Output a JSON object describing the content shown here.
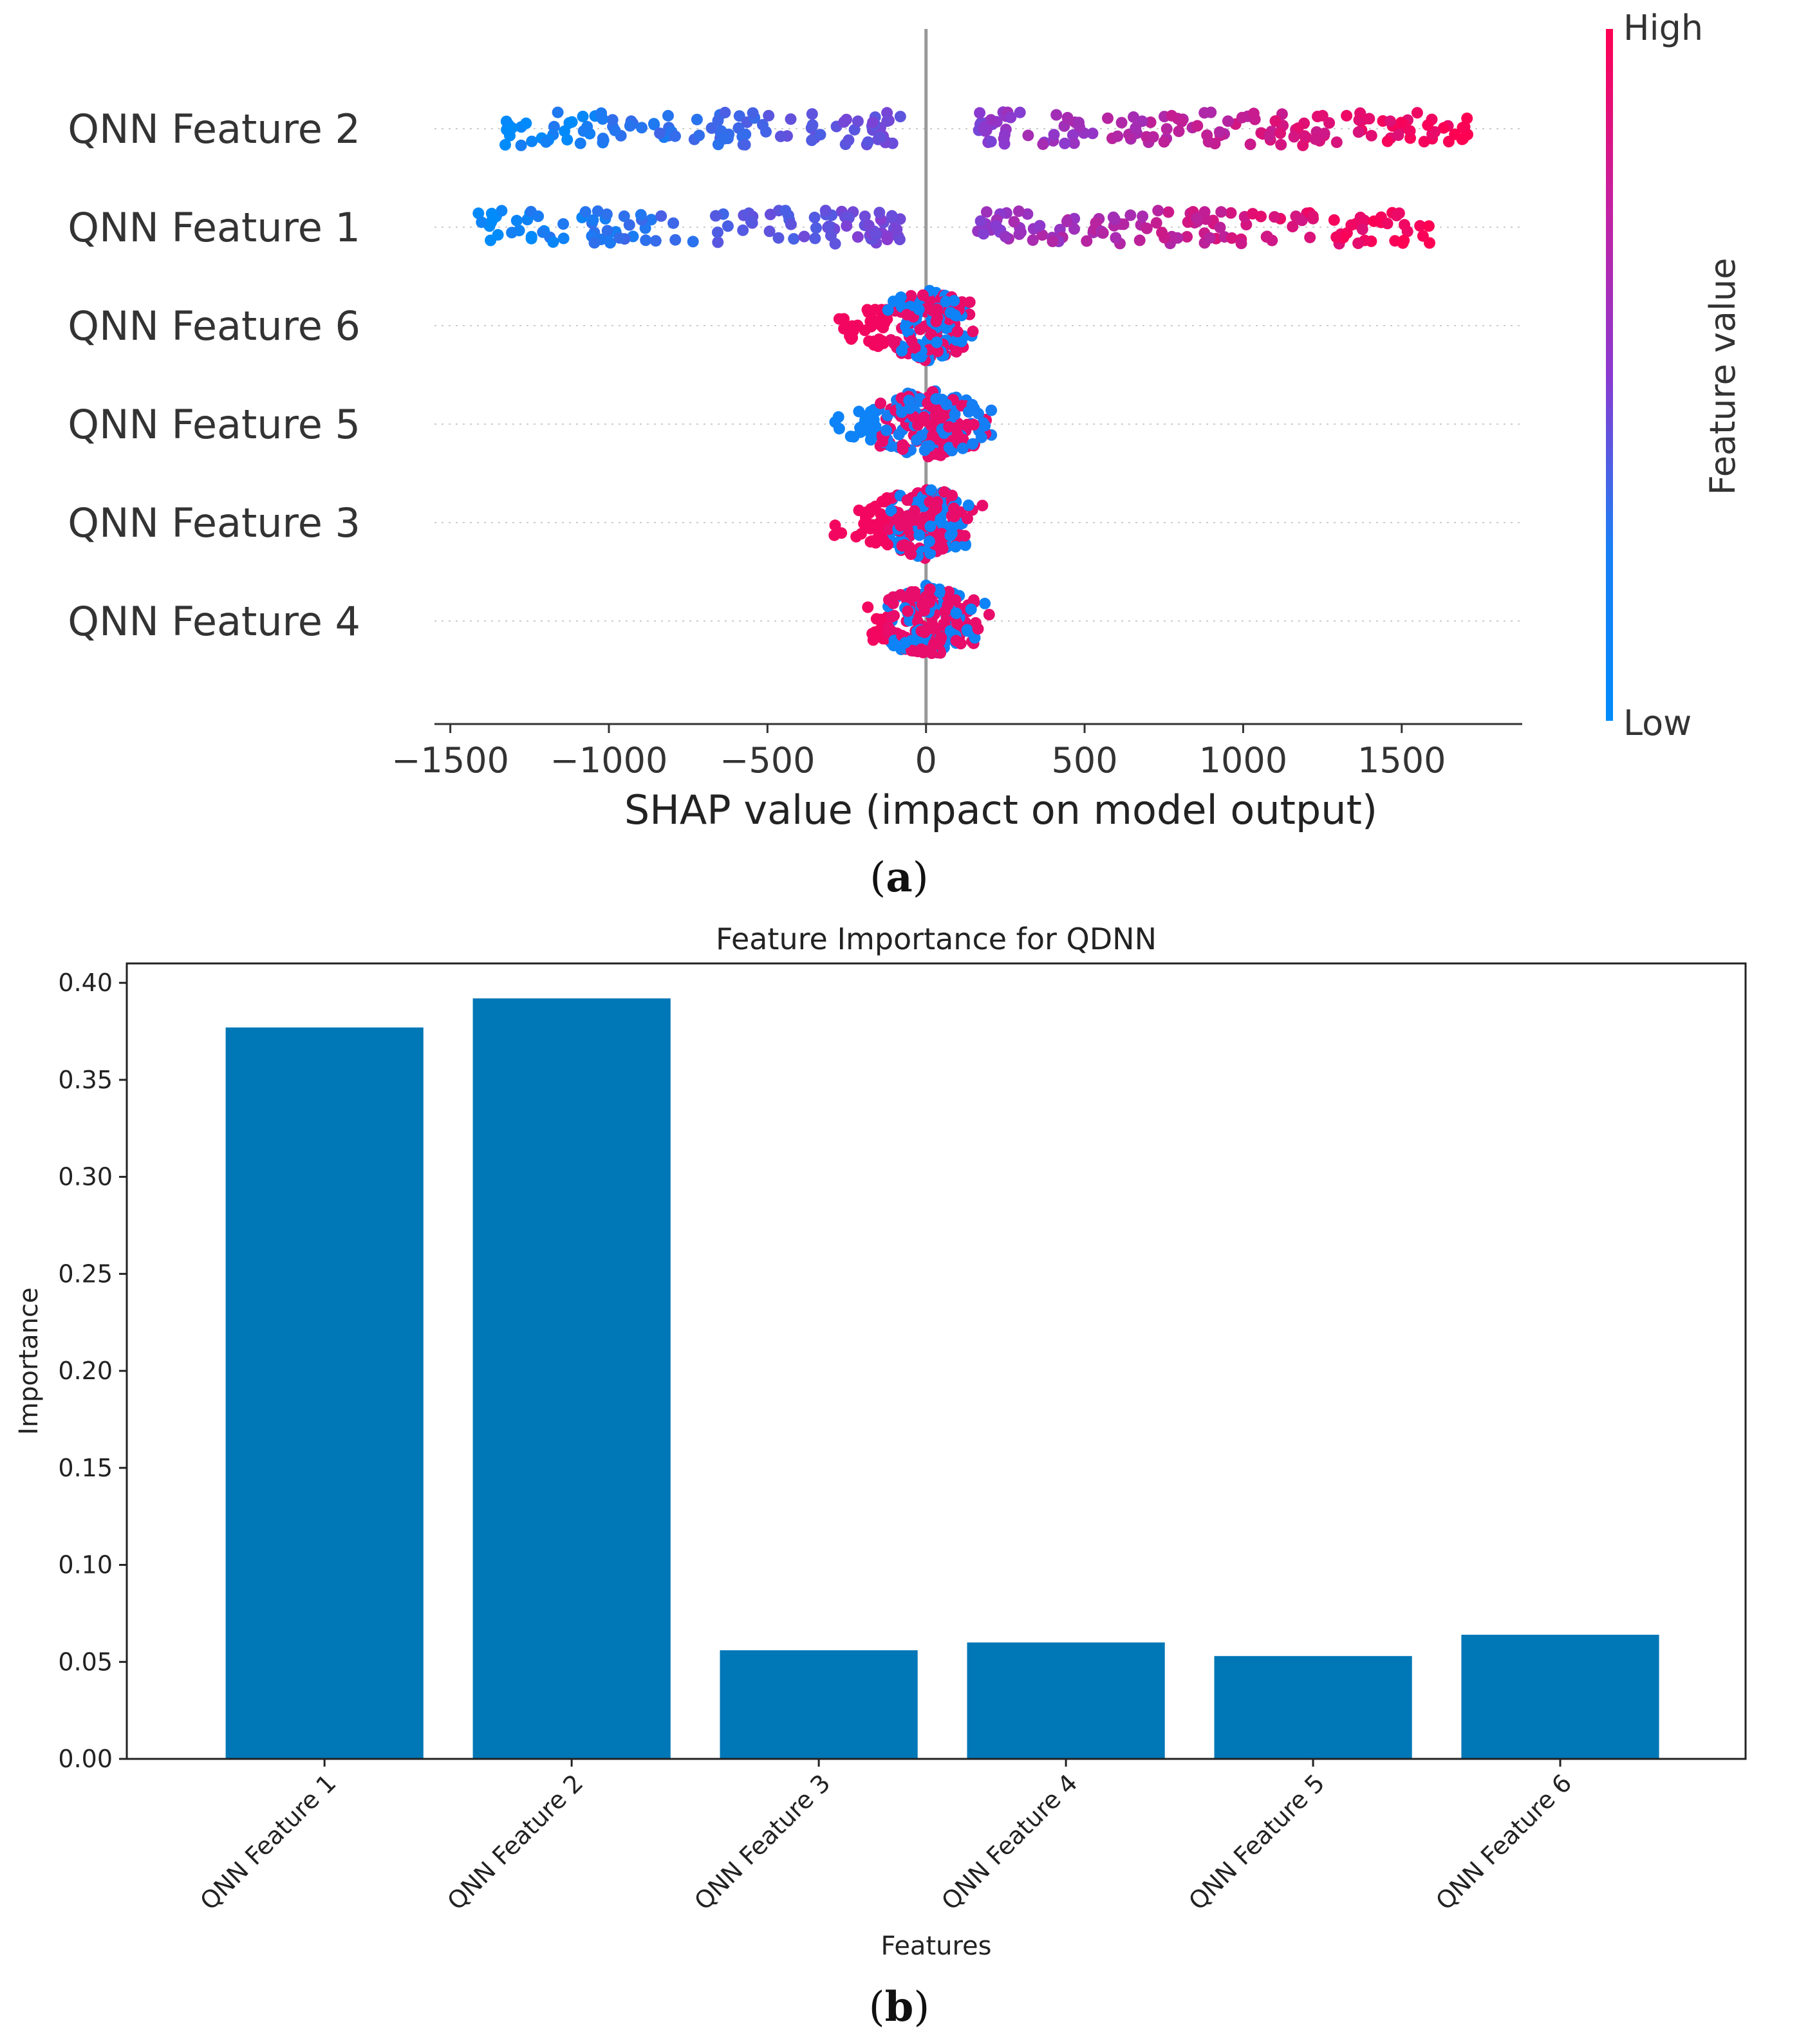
{
  "figure": {
    "panel_a_label": "a",
    "panel_b_label": "b"
  },
  "chart_data": [
    {
      "type": "scatter",
      "subtype": "shap-beeswarm",
      "title": "",
      "xlabel": "SHAP value (impact on model output)",
      "xlim": [
        -1550,
        1880
      ],
      "xticks": [
        -1500,
        -1000,
        -500,
        0,
        500,
        1000,
        1500
      ],
      "xtick_labels": [
        "−1500",
        "−1000",
        "−500",
        "0",
        "500",
        "1000",
        "1500"
      ],
      "colorbar": {
        "label": "Feature value",
        "high_label": "High",
        "low_label": "Low",
        "low_color": "#008bfb",
        "mid_color": "#8a3ad0",
        "high_color": "#ff0052"
      },
      "features": [
        {
          "name": "QNN Feature 2",
          "shap_range": [
            -1340,
            1720
          ],
          "correlation": "positive"
        },
        {
          "name": "QNN Feature 1",
          "shap_range": [
            -1420,
            1600
          ],
          "correlation": "positive"
        },
        {
          "name": "QNN Feature 6",
          "shap_range": [
            -380,
            200
          ],
          "correlation": "negative"
        },
        {
          "name": "QNN Feature 5",
          "shap_range": [
            -380,
            280
          ],
          "correlation": "mixed"
        },
        {
          "name": "QNN Feature 3",
          "shap_range": [
            -340,
            220
          ],
          "correlation": "negative"
        },
        {
          "name": "QNN Feature 4",
          "shap_range": [
            -240,
            270
          ],
          "correlation": "negative"
        }
      ]
    },
    {
      "type": "bar",
      "title": "Feature Importance for QDNN",
      "xlabel": "Features",
      "ylabel": "Importance",
      "categories": [
        "QNN Feature 1",
        "QNN Feature 2",
        "QNN Feature 3",
        "QNN Feature 4",
        "QNN Feature 5",
        "QNN Feature 6"
      ],
      "values": [
        0.377,
        0.392,
        0.056,
        0.06,
        0.053,
        0.064
      ],
      "ylim": [
        0,
        0.41
      ],
      "yticks": [
        0.0,
        0.05,
        0.1,
        0.15,
        0.2,
        0.25,
        0.3,
        0.35,
        0.4
      ],
      "ytick_labels": [
        "0.00",
        "0.05",
        "0.10",
        "0.15",
        "0.20",
        "0.25",
        "0.30",
        "0.35",
        "0.40"
      ],
      "bar_color": "#0077b7"
    }
  ]
}
